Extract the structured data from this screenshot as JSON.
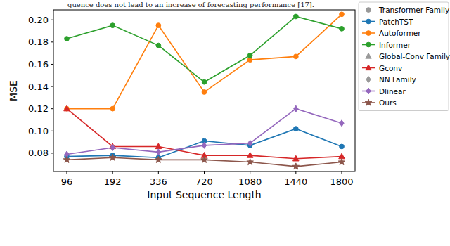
{
  "chart_data": {
    "type": "line",
    "annotation": "quence does not lead to an increase of forecasting performance [17].",
    "x_label": "Input Sequence Length",
    "y_label": "MSE",
    "categories": [
      "96",
      "192",
      "336",
      "720",
      "1080",
      "1440",
      "1800"
    ],
    "ylim": [
      0.0635,
      0.209
    ],
    "yticks": [
      0.08,
      {
        "value": 0.1,
        "label": "0.10"
      },
      0.12,
      0.14,
      0.16,
      0.18,
      {
        "value": 0.2,
        "label": "0.20"
      }
    ],
    "grid": false,
    "legend": "outside-right",
    "series": [
      {
        "name": "Transformer Family",
        "color": "#999999",
        "marker": "circle",
        "values": [
          null,
          null,
          null,
          null,
          null,
          null,
          null
        ]
      },
      {
        "name": "PatchTST",
        "color": "#1f77b4",
        "marker": "circle",
        "values": [
          0.077,
          0.078,
          0.076,
          0.091,
          0.087,
          0.102,
          0.086
        ]
      },
      {
        "name": "Autoformer",
        "color": "#ff7f0e",
        "marker": "circle",
        "values": [
          0.12,
          0.12,
          0.195,
          0.135,
          0.164,
          0.167,
          0.205
        ]
      },
      {
        "name": "Informer",
        "color": "#2ca02c",
        "marker": "circle",
        "values": [
          0.183,
          0.195,
          0.177,
          0.144,
          0.168,
          0.203,
          0.192
        ]
      },
      {
        "name": "Global-Conv Family",
        "color": "#999999",
        "marker": "triangle",
        "values": [
          null,
          null,
          null,
          null,
          null,
          null,
          null
        ]
      },
      {
        "name": "Gconv",
        "color": "#d62728",
        "marker": "triangle",
        "values": [
          0.12,
          0.086,
          0.086,
          0.078,
          0.078,
          0.075,
          0.077
        ]
      },
      {
        "name": "NN Family",
        "color": "#999999",
        "marker": "diamond",
        "values": [
          null,
          null,
          null,
          null,
          null,
          null,
          null
        ]
      },
      {
        "name": "Dlinear",
        "color": "#9467bd",
        "marker": "diamond",
        "values": [
          0.079,
          0.085,
          0.081,
          0.087,
          0.089,
          0.12,
          0.107
        ]
      },
      {
        "name": "Ours",
        "color": "#8c564b",
        "marker": "star",
        "values": [
          0.074,
          0.076,
          0.074,
          0.074,
          0.072,
          0.068,
          0.072
        ]
      }
    ]
  }
}
